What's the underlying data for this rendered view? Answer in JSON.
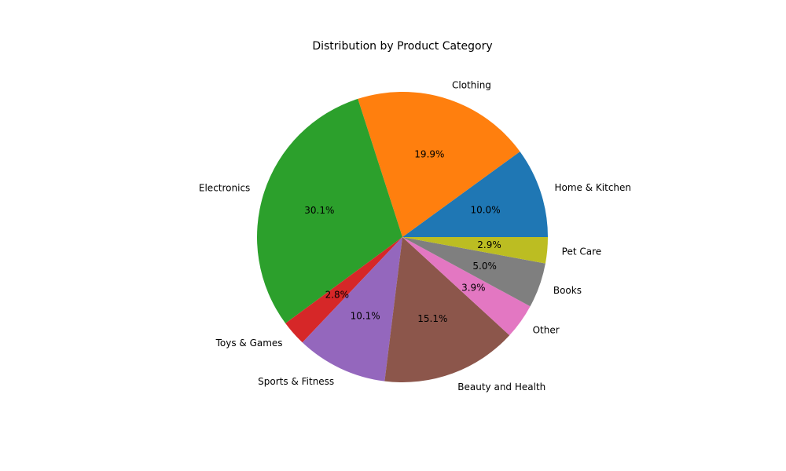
{
  "chart_data": {
    "type": "pie",
    "title": "Distribution by Product Category",
    "start_angle_deg": 0,
    "direction": "counterclockwise",
    "slices": [
      {
        "label": "Home & Kitchen",
        "value": 10.0,
        "pct_text": "10.0%",
        "color": "#1f77b4"
      },
      {
        "label": "Clothing",
        "value": 19.9,
        "pct_text": "19.9%",
        "color": "#ff7f0e"
      },
      {
        "label": "Electronics",
        "value": 30.1,
        "pct_text": "30.1%",
        "color": "#2ca02c"
      },
      {
        "label": "Toys & Games",
        "value": 2.8,
        "pct_text": "2.8%",
        "color": "#d62728"
      },
      {
        "label": "Sports & Fitness",
        "value": 10.1,
        "pct_text": "10.1%",
        "color": "#9467bd"
      },
      {
        "label": "Beauty and Health",
        "value": 15.1,
        "pct_text": "15.1%",
        "color": "#8c564b"
      },
      {
        "label": "Other",
        "value": 3.9,
        "pct_text": "3.9%",
        "color": "#e377c2"
      },
      {
        "label": "Books",
        "value": 5.0,
        "pct_text": "5.0%",
        "color": "#7f7f7f"
      },
      {
        "label": "Pet Care",
        "value": 2.9,
        "pct_text": "2.9%",
        "color": "#bcbd22"
      }
    ]
  }
}
